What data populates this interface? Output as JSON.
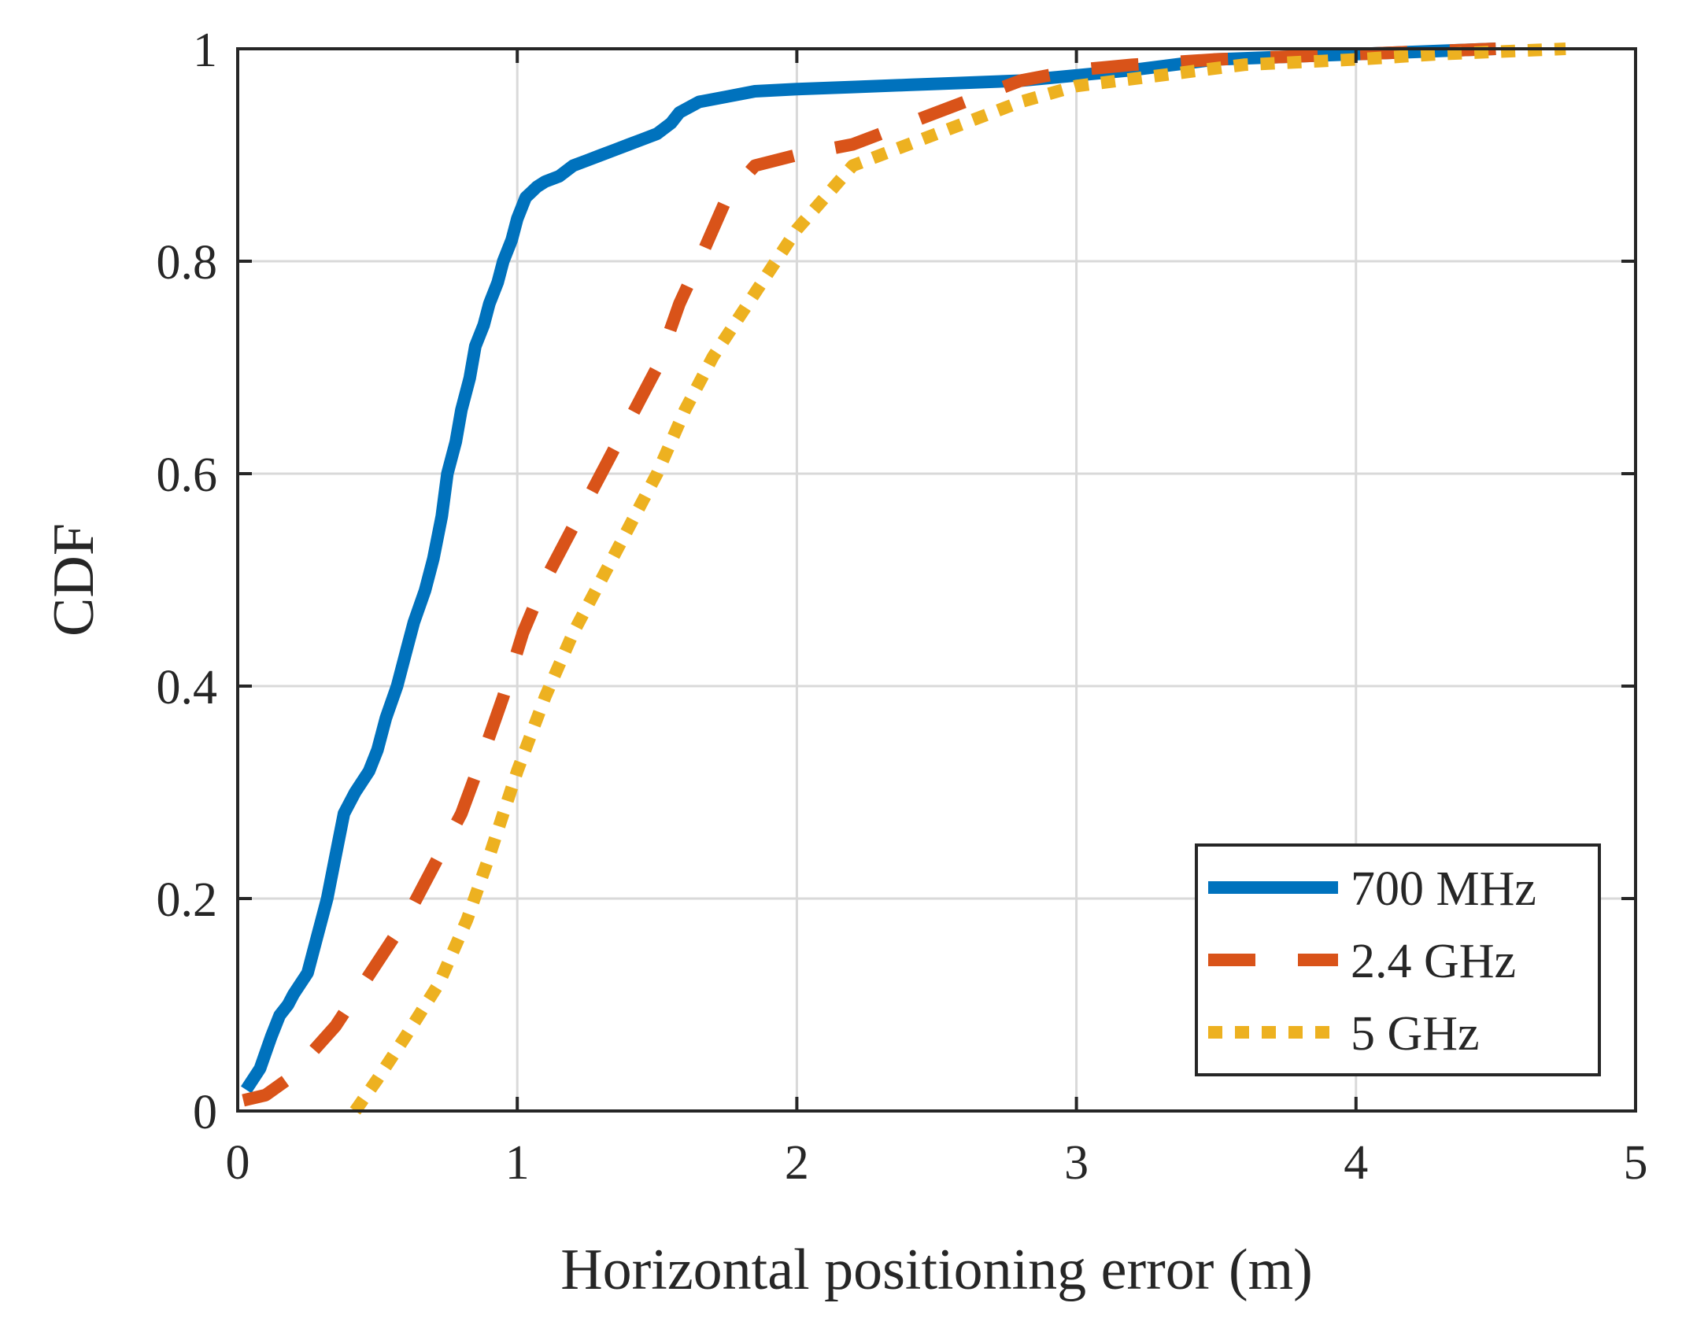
{
  "chart_data": {
    "type": "line",
    "title": "",
    "xlabel": "Horizontal positioning error (m)",
    "ylabel": "CDF",
    "xlim": [
      0,
      5
    ],
    "ylim": [
      0,
      1
    ],
    "xticks": [
      0,
      1,
      2,
      3,
      4,
      5
    ],
    "xtick_labels": [
      "0",
      "1",
      "2",
      "3",
      "4",
      "5"
    ],
    "yticks": [
      0,
      0.2,
      0.4,
      0.6,
      0.8,
      1
    ],
    "ytick_labels": [
      "0",
      "0.2",
      "0.4",
      "0.6",
      "0.8",
      "1"
    ],
    "grid": true,
    "legend_position": "bottom-right",
    "series": [
      {
        "name": "700 MHz",
        "color": "#0072BD",
        "style": "solid",
        "x": [
          0.03,
          0.08,
          0.12,
          0.15,
          0.18,
          0.2,
          0.25,
          0.27,
          0.3,
          0.32,
          0.35,
          0.38,
          0.42,
          0.47,
          0.5,
          0.53,
          0.57,
          0.6,
          0.63,
          0.67,
          0.7,
          0.73,
          0.75,
          0.78,
          0.8,
          0.83,
          0.85,
          0.88,
          0.9,
          0.93,
          0.95,
          0.98,
          1.0,
          1.03,
          1.05,
          1.07,
          1.1,
          1.15,
          1.2,
          1.25,
          1.3,
          1.35,
          1.4,
          1.45,
          1.5,
          1.55,
          1.58,
          1.65,
          1.75,
          1.85,
          2.0,
          2.2,
          2.4,
          2.6,
          2.8,
          3.0,
          3.2,
          3.5,
          4.0,
          4.5
        ],
        "y": [
          0.02,
          0.04,
          0.07,
          0.09,
          0.1,
          0.11,
          0.13,
          0.15,
          0.18,
          0.2,
          0.24,
          0.28,
          0.3,
          0.32,
          0.34,
          0.37,
          0.4,
          0.43,
          0.46,
          0.49,
          0.52,
          0.56,
          0.6,
          0.63,
          0.66,
          0.69,
          0.72,
          0.74,
          0.76,
          0.78,
          0.8,
          0.82,
          0.84,
          0.86,
          0.865,
          0.87,
          0.875,
          0.88,
          0.89,
          0.895,
          0.9,
          0.905,
          0.91,
          0.915,
          0.92,
          0.93,
          0.94,
          0.95,
          0.955,
          0.96,
          0.962,
          0.964,
          0.966,
          0.968,
          0.97,
          0.975,
          0.98,
          0.99,
          0.995,
          1.0
        ]
      },
      {
        "name": "2.4 GHz",
        "color": "#D95319",
        "style": "dashed",
        "x": [
          0.02,
          0.1,
          0.18,
          0.35,
          0.45,
          0.6,
          0.7,
          0.8,
          0.87,
          0.95,
          1.02,
          1.1,
          1.2,
          1.3,
          1.4,
          1.5,
          1.58,
          1.65,
          1.75,
          1.85,
          2.0,
          2.2,
          2.4,
          2.6,
          2.8,
          3.0,
          3.2,
          3.5,
          4.0,
          4.5
        ],
        "y": [
          0.01,
          0.015,
          0.03,
          0.08,
          0.12,
          0.18,
          0.23,
          0.28,
          0.33,
          0.39,
          0.45,
          0.5,
          0.55,
          0.6,
          0.65,
          0.7,
          0.76,
          0.8,
          0.86,
          0.89,
          0.9,
          0.91,
          0.93,
          0.95,
          0.97,
          0.98,
          0.985,
          0.99,
          0.995,
          1.0
        ]
      },
      {
        "name": "5 GHz",
        "color": "#EDB120",
        "style": "dotted",
        "x": [
          0.42,
          0.5,
          0.6,
          0.72,
          0.82,
          0.9,
          1.0,
          1.1,
          1.2,
          1.3,
          1.4,
          1.5,
          1.6,
          1.7,
          1.8,
          1.9,
          2.0,
          2.1,
          2.2,
          2.4,
          2.6,
          2.8,
          3.0,
          3.3,
          3.6,
          4.0,
          4.3,
          4.75
        ],
        "y": [
          0.0,
          0.03,
          0.07,
          0.12,
          0.18,
          0.24,
          0.32,
          0.39,
          0.45,
          0.5,
          0.55,
          0.6,
          0.66,
          0.71,
          0.75,
          0.79,
          0.83,
          0.86,
          0.89,
          0.91,
          0.93,
          0.95,
          0.965,
          0.975,
          0.985,
          0.99,
          0.995,
          1.0
        ]
      }
    ]
  }
}
